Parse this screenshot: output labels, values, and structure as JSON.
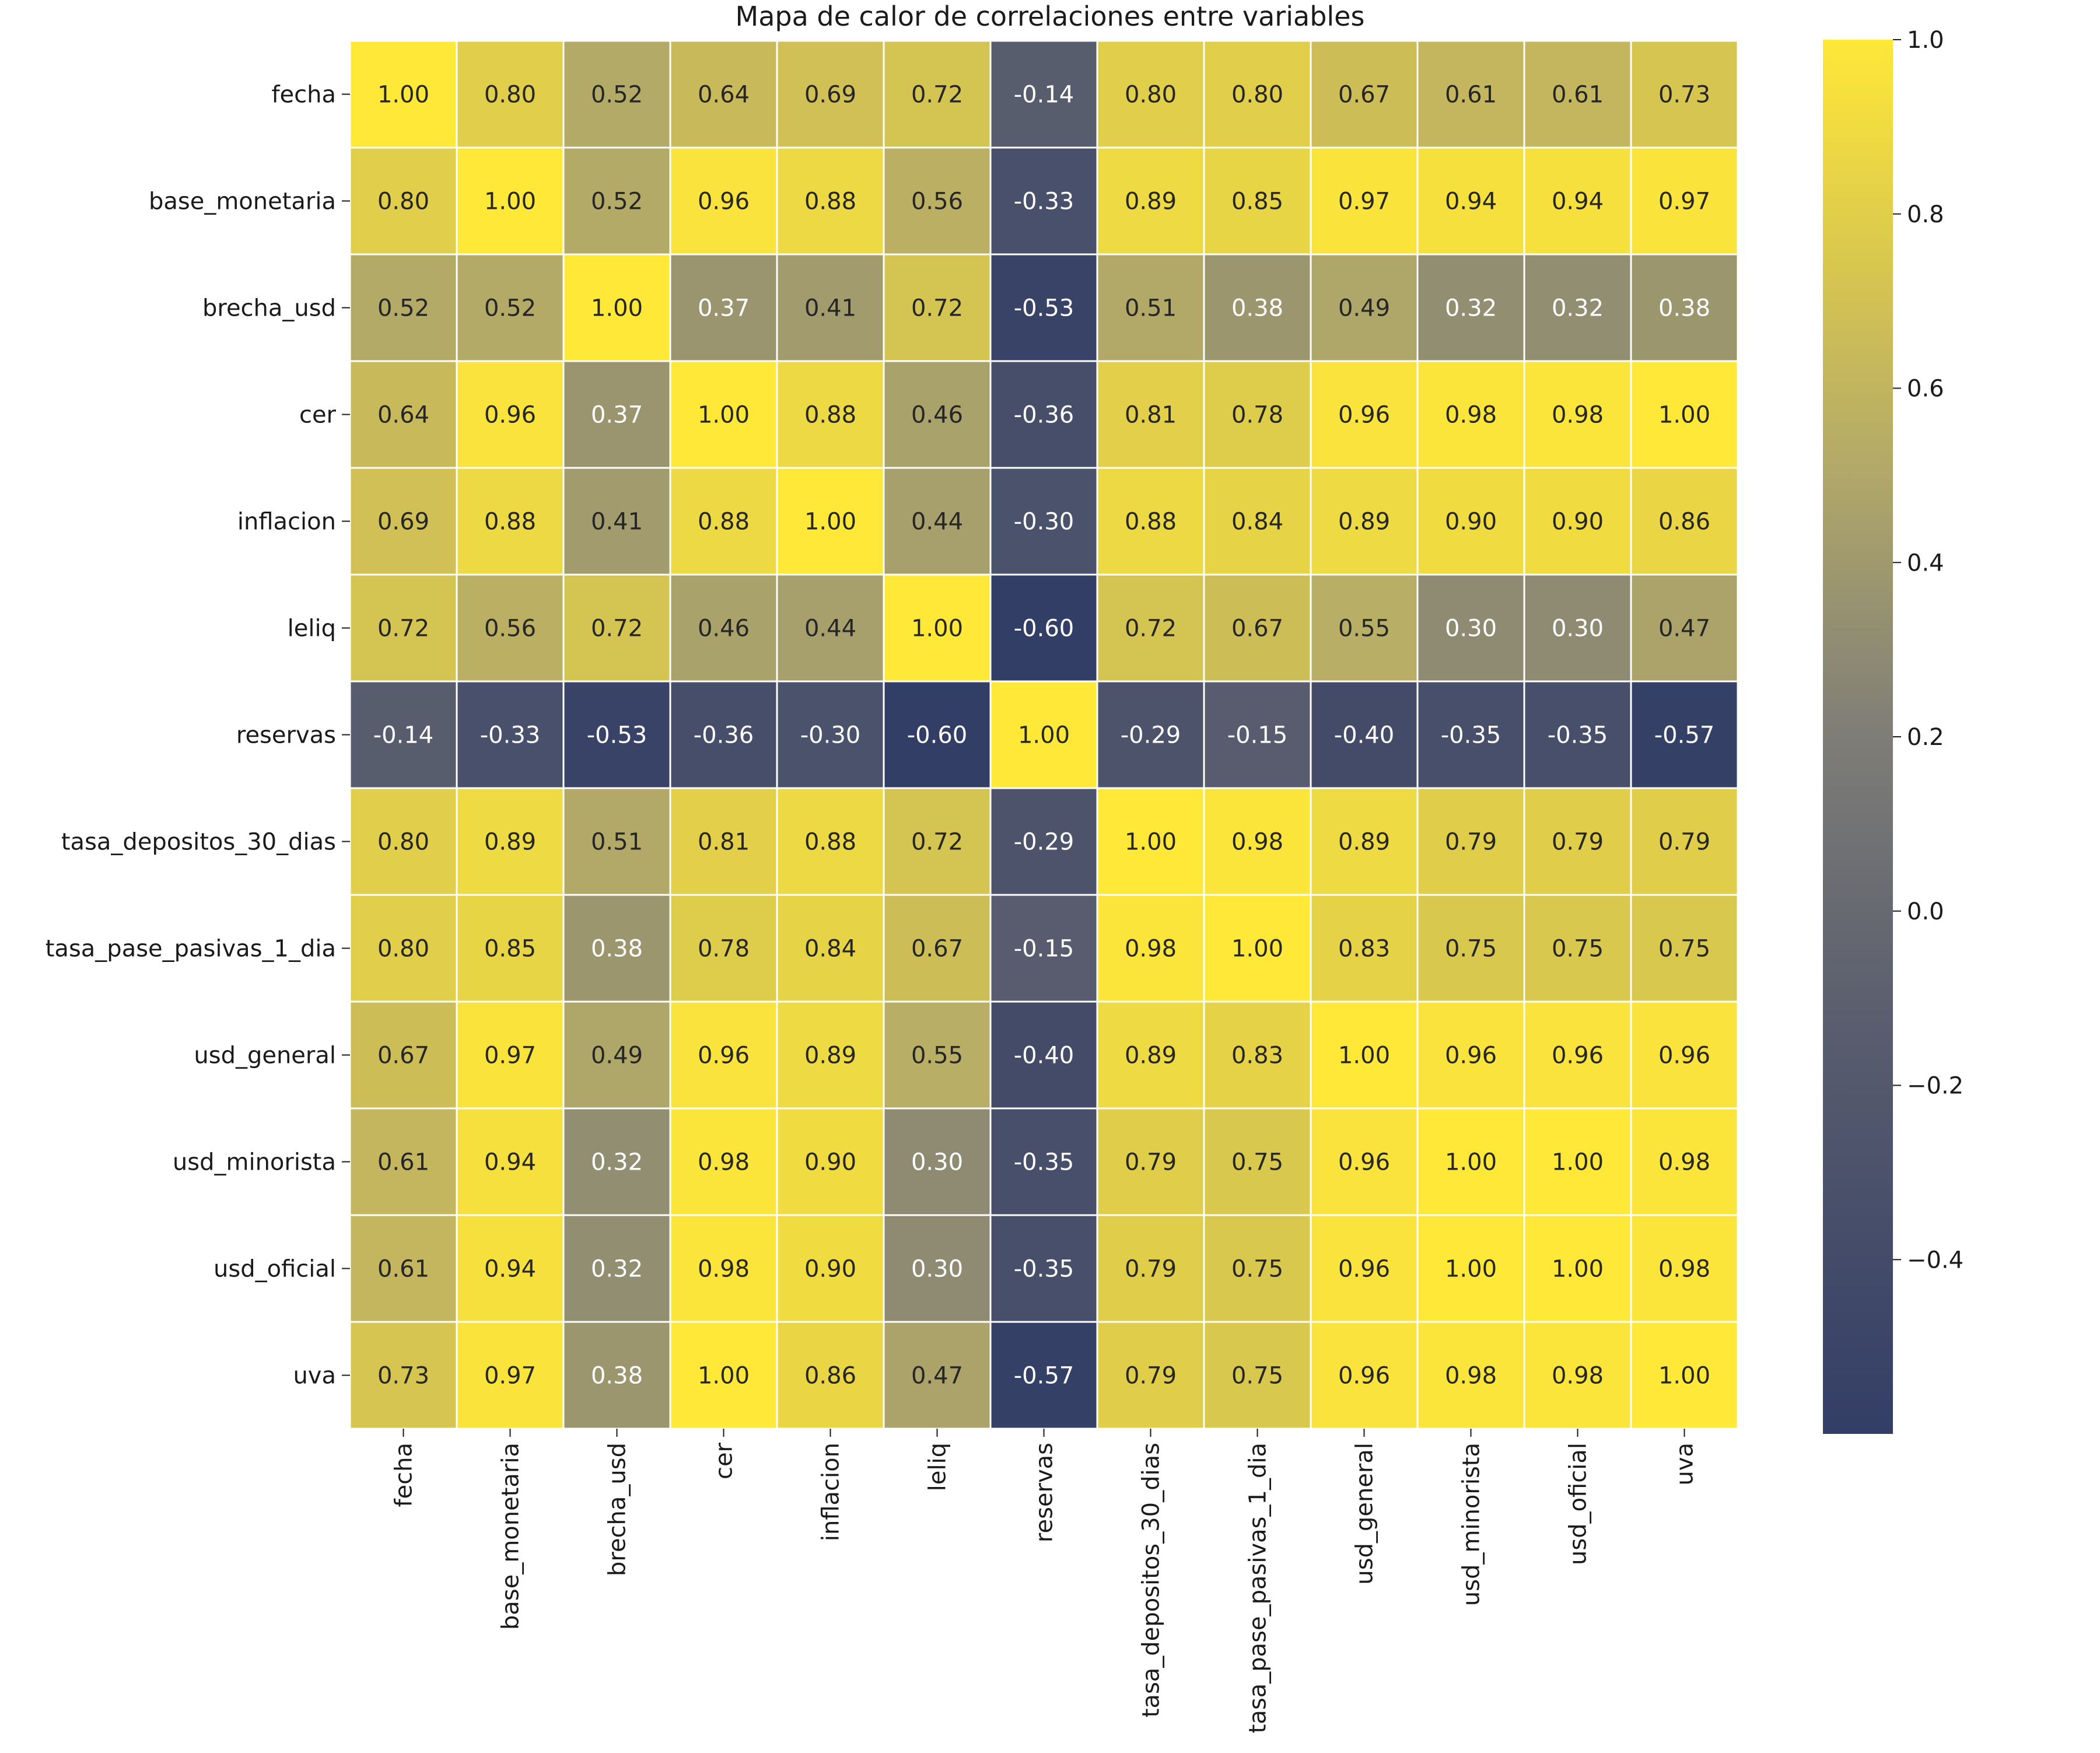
{
  "chart_data": {
    "type": "heatmap",
    "title": "Mapa de calor de correlaciones entre variables",
    "rows": [
      "fecha",
      "base_monetaria",
      "brecha_usd",
      "cer",
      "inflacion",
      "leliq",
      "reservas",
      "tasa_depositos_30_dias",
      "tasa_pase_pasivas_1_dia",
      "usd_general",
      "usd_minorista",
      "usd_oficial",
      "uva"
    ],
    "columns": [
      "fecha",
      "base_monetaria",
      "brecha_usd",
      "cer",
      "inflacion",
      "leliq",
      "reservas",
      "tasa_depositos_30_dias",
      "tasa_pase_pasivas_1_dia",
      "usd_general",
      "usd_minorista",
      "usd_oficial",
      "uva"
    ],
    "values": [
      [
        1.0,
        0.8,
        0.52,
        0.64,
        0.69,
        0.72,
        -0.14,
        0.8,
        0.8,
        0.67,
        0.61,
        0.61,
        0.73
      ],
      [
        0.8,
        1.0,
        0.52,
        0.96,
        0.88,
        0.56,
        -0.33,
        0.89,
        0.85,
        0.97,
        0.94,
        0.94,
        0.97
      ],
      [
        0.52,
        0.52,
        1.0,
        0.37,
        0.41,
        0.72,
        -0.53,
        0.51,
        0.38,
        0.49,
        0.32,
        0.32,
        0.38
      ],
      [
        0.64,
        0.96,
        0.37,
        1.0,
        0.88,
        0.46,
        -0.36,
        0.81,
        0.78,
        0.96,
        0.98,
        0.98,
        1.0
      ],
      [
        0.69,
        0.88,
        0.41,
        0.88,
        1.0,
        0.44,
        -0.3,
        0.88,
        0.84,
        0.89,
        0.9,
        0.9,
        0.86
      ],
      [
        0.72,
        0.56,
        0.72,
        0.46,
        0.44,
        1.0,
        -0.6,
        0.72,
        0.67,
        0.55,
        0.3,
        0.3,
        0.47
      ],
      [
        -0.14,
        -0.33,
        -0.53,
        -0.36,
        -0.3,
        -0.6,
        1.0,
        -0.29,
        -0.15,
        -0.4,
        -0.35,
        -0.35,
        -0.57
      ],
      [
        0.8,
        0.89,
        0.51,
        0.81,
        0.88,
        0.72,
        -0.29,
        1.0,
        0.98,
        0.89,
        0.79,
        0.79,
        0.79
      ],
      [
        0.8,
        0.85,
        0.38,
        0.78,
        0.84,
        0.67,
        -0.15,
        0.98,
        1.0,
        0.83,
        0.75,
        0.75,
        0.75
      ],
      [
        0.67,
        0.97,
        0.49,
        0.96,
        0.89,
        0.55,
        -0.4,
        0.89,
        0.83,
        1.0,
        0.96,
        0.96,
        0.96
      ],
      [
        0.61,
        0.94,
        0.32,
        0.98,
        0.9,
        0.3,
        -0.35,
        0.79,
        0.75,
        0.96,
        1.0,
        1.0,
        0.98
      ],
      [
        0.61,
        0.94,
        0.32,
        0.98,
        0.9,
        0.3,
        -0.35,
        0.79,
        0.75,
        0.96,
        1.0,
        1.0,
        0.98
      ],
      [
        0.73,
        0.97,
        0.38,
        1.0,
        0.86,
        0.47,
        -0.57,
        0.79,
        0.75,
        0.96,
        0.98,
        0.98,
        1.0
      ]
    ],
    "value_format": "0.00",
    "colorbar": {
      "ticks": [
        "1.0",
        "0.8",
        "0.6",
        "0.4",
        "0.2",
        "0.0",
        "−0.2",
        "−0.4"
      ],
      "range": [
        -0.6,
        1.0
      ]
    },
    "colormap": {
      "name": "cividis",
      "low": "#333e66",
      "mid": "#7e7d77",
      "high": "#ffe838"
    },
    "cell_border_color": "#ffffff",
    "grid": false,
    "legend": "colorbar-right"
  }
}
